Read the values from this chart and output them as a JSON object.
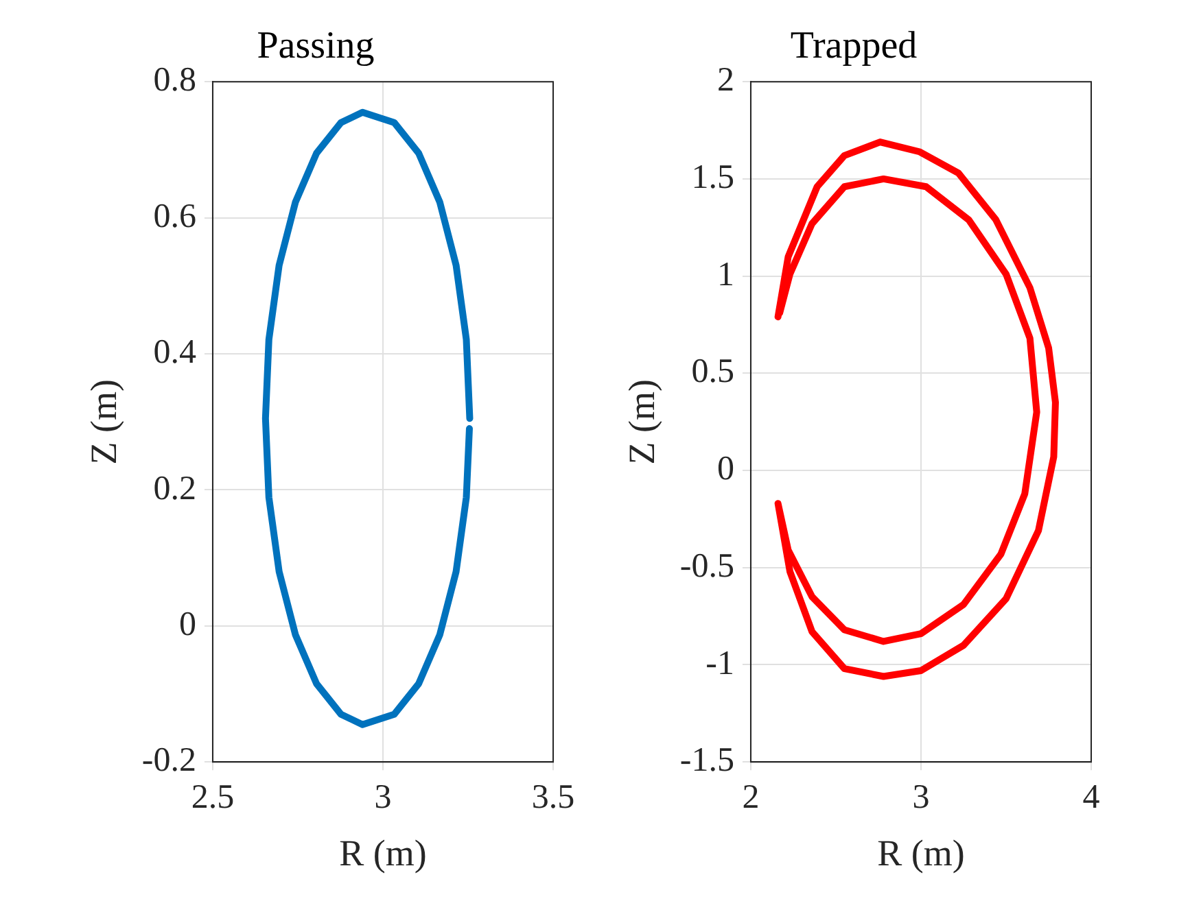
{
  "chart_data": [
    {
      "type": "line",
      "title": "Passing",
      "xlabel": "R (m)",
      "ylabel": "Z (m)",
      "xlim": [
        2.5,
        3.5
      ],
      "xticks": [
        2.5,
        3,
        3.5
      ],
      "ylim": [
        -0.2,
        0.8
      ],
      "yticks": [
        -0.2,
        0,
        0.2,
        0.4,
        0.6,
        0.8
      ],
      "grid": true,
      "legend": false,
      "marker": "none",
      "line_style": "solid",
      "x": [
        3.255,
        3.245,
        3.215,
        3.167,
        3.105,
        3.033,
        2.94,
        2.877,
        2.805,
        2.743,
        2.695,
        2.665,
        2.655,
        2.665,
        2.695,
        2.743,
        2.805,
        2.877,
        2.94,
        3.033,
        3.105,
        3.167,
        3.215,
        3.245,
        3.254
      ],
      "series": [
        {
          "color": "#0072bd",
          "values": [
            0.305,
            0.421,
            0.53,
            0.623,
            0.695,
            0.74,
            0.755,
            0.74,
            0.695,
            0.623,
            0.53,
            0.421,
            0.305,
            0.189,
            0.08,
            -0.013,
            -0.085,
            -0.13,
            -0.145,
            -0.13,
            -0.085,
            -0.013,
            0.08,
            0.189,
            0.29
          ]
        }
      ]
    },
    {
      "type": "line",
      "title": "Trapped",
      "xlabel": "R (m)",
      "ylabel": "Z (m)",
      "xlim": [
        2,
        4
      ],
      "xticks": [
        2,
        3,
        4
      ],
      "ylim": [
        -1.5,
        2
      ],
      "yticks": [
        -1.5,
        -1,
        -0.5,
        0,
        0.5,
        1,
        1.5,
        2
      ],
      "grid": true,
      "legend": false,
      "marker": "none",
      "line_style": "solid",
      "x": [
        2.16,
        2.22,
        2.39,
        2.55,
        2.76,
        2.99,
        3.22,
        3.44,
        3.64,
        3.75,
        3.79,
        3.78,
        3.69,
        3.5,
        3.25,
        3.0,
        2.78,
        2.55,
        2.36,
        2.23,
        2.16,
        2.22,
        2.36,
        2.55,
        2.78,
        3.0,
        3.25,
        3.47,
        3.61,
        3.68,
        3.64,
        3.5,
        3.28,
        3.03,
        2.78,
        2.55,
        2.36,
        2.23,
        2.17
      ],
      "series": [
        {
          "color": "#ff0000",
          "values": [
            0.79,
            1.1,
            1.46,
            1.62,
            1.69,
            1.64,
            1.53,
            1.29,
            0.94,
            0.63,
            0.35,
            0.07,
            -0.31,
            -0.66,
            -0.9,
            -1.03,
            -1.06,
            -1.02,
            -0.83,
            -0.52,
            -0.17,
            -0.41,
            -0.65,
            -0.82,
            -0.88,
            -0.84,
            -0.69,
            -0.43,
            -0.12,
            0.3,
            0.68,
            1.01,
            1.29,
            1.46,
            1.5,
            1.46,
            1.27,
            1.01,
            0.81
          ]
        }
      ]
    }
  ]
}
